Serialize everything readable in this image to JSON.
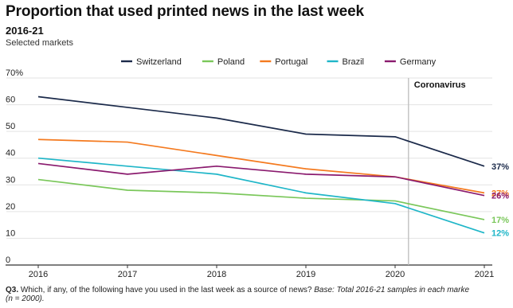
{
  "header": {
    "title": "Proportion that used printed news in the last week",
    "subtitle": "2016-21",
    "note": "Selected markets"
  },
  "footnote": {
    "q": "Q3.",
    "text": " Which, if any, of the following have you used in the last week as a source of news? ",
    "base": "Base: Total 2016-21 samples in each marke",
    "line2": "(n = 2000)."
  },
  "chart_data": {
    "type": "line",
    "x": [
      "2016",
      "2017",
      "2018",
      "2019",
      "2020",
      "2021"
    ],
    "ylim": [
      0,
      70
    ],
    "yticks": [
      "0",
      "10",
      "20",
      "30",
      "40",
      "50",
      "60",
      "70%"
    ],
    "grid": true,
    "legend": "top",
    "annotation": {
      "label": "Coronavirus",
      "between": [
        "2020",
        "2021"
      ]
    },
    "series": [
      {
        "name": "Switzerland",
        "color": "#1b2a4a",
        "values": [
          63,
          59,
          55,
          49,
          48,
          37
        ],
        "end_label": "37%"
      },
      {
        "name": "Poland",
        "color": "#7ac75a",
        "values": [
          32,
          28,
          27,
          25,
          24,
          17
        ],
        "end_label": "17%"
      },
      {
        "name": "Portugal",
        "color": "#f47a1f",
        "values": [
          47,
          46,
          41,
          36,
          33,
          27
        ],
        "end_label": "27%"
      },
      {
        "name": "Brazil",
        "color": "#1fb6c8",
        "values": [
          40,
          37,
          34,
          27,
          23,
          12
        ],
        "end_label": "12%"
      },
      {
        "name": "Germany",
        "color": "#8a1a6e",
        "values": [
          38,
          34,
          37,
          34,
          33,
          26
        ],
        "end_label": "26%"
      }
    ]
  }
}
